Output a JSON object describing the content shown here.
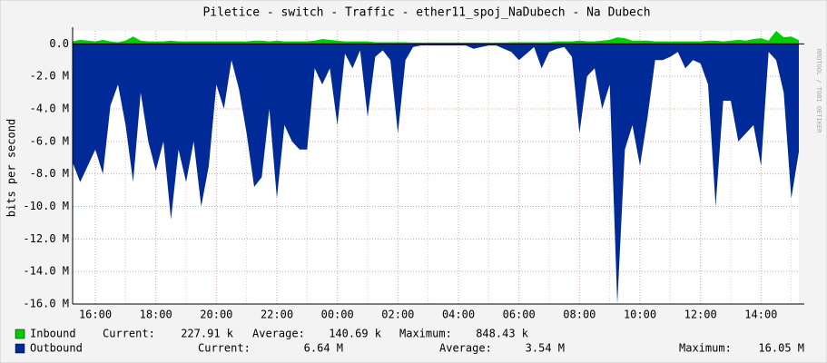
{
  "chart_data": {
    "type": "area",
    "title": "Piletice - switch - Traffic - ether11_spoj_NaDubech - Na Dubech",
    "y_label": "bits per second",
    "watermark": "RRDTOOL / TOBI OETIKER",
    "categories": [
      null,
      null,
      null,
      "16:00",
      null,
      null,
      null,
      null,
      null,
      null,
      null,
      "18:00",
      null,
      null,
      null,
      null,
      null,
      null,
      null,
      "20:00",
      null,
      null,
      null,
      null,
      null,
      null,
      null,
      "22:00",
      null,
      null,
      null,
      null,
      null,
      null,
      null,
      "00:00",
      null,
      null,
      null,
      null,
      null,
      null,
      null,
      "02:00",
      null,
      null,
      null,
      null,
      null,
      null,
      null,
      "04:00",
      null,
      null,
      null,
      null,
      null,
      null,
      null,
      "06:00",
      null,
      null,
      null,
      null,
      null,
      null,
      null,
      "08:00",
      null,
      null,
      null,
      null,
      null,
      null,
      null,
      "10:00",
      null,
      null,
      null,
      null,
      null,
      null,
      null,
      "12:00",
      null,
      null,
      null,
      null,
      null,
      null,
      null,
      "14:00",
      null,
      null,
      null,
      null,
      null
    ],
    "ylim": [
      -16000000,
      800000
    ],
    "yticks": [
      {
        "value": -16000000,
        "label": "-16.0 M"
      },
      {
        "value": -14000000,
        "label": "-14.0 M"
      },
      {
        "value": -12000000,
        "label": "-12.0 M"
      },
      {
        "value": -10000000,
        "label": "-10.0 M"
      },
      {
        "value": -8000000,
        "label": "-8.0 M"
      },
      {
        "value": -6000000,
        "label": "-6.0 M"
      },
      {
        "value": -4000000,
        "label": "-4.0 M"
      },
      {
        "value": -2000000,
        "label": "-2.0 M"
      },
      {
        "value": 0,
        "label": "0.0"
      }
    ],
    "grid": true,
    "series": [
      {
        "name": "Inbound",
        "color": "#00cc00",
        "legend_stats": [
          {
            "label": "Current:",
            "value": "227.91 k"
          },
          {
            "label": "Average:",
            "value": "140.69 k"
          },
          {
            "label": "Maximum:",
            "value": "848.43 k"
          }
        ],
        "values": [
          150000,
          250000,
          200000,
          150000,
          250000,
          150000,
          100000,
          200000,
          450000,
          200000,
          150000,
          150000,
          150000,
          200000,
          150000,
          150000,
          150000,
          150000,
          150000,
          150000,
          150000,
          150000,
          150000,
          150000,
          200000,
          200000,
          150000,
          200000,
          150000,
          150000,
          150000,
          150000,
          200000,
          300000,
          250000,
          200000,
          150000,
          150000,
          150000,
          150000,
          100000,
          100000,
          100000,
          100000,
          100000,
          80000,
          80000,
          80000,
          80000,
          80000,
          80000,
          80000,
          80000,
          80000,
          80000,
          80000,
          80000,
          80000,
          100000,
          100000,
          100000,
          100000,
          100000,
          100000,
          150000,
          150000,
          150000,
          200000,
          150000,
          150000,
          200000,
          250000,
          400000,
          350000,
          200000,
          200000,
          200000,
          150000,
          150000,
          150000,
          150000,
          150000,
          150000,
          150000,
          200000,
          200000,
          150000,
          200000,
          250000,
          200000,
          300000,
          350000,
          200000,
          800000,
          400000,
          450000,
          227910
        ]
      },
      {
        "name": "Outbound",
        "color": "#002a97",
        "legend_stats": [
          {
            "label": "Current:",
            "value": "6.64 M"
          },
          {
            "label": "Average:",
            "value": "3.54 M"
          },
          {
            "label": "Maximum:",
            "value": "16.05 M"
          }
        ],
        "values": [
          -7300000,
          -8500000,
          -7500000,
          -6500000,
          -8000000,
          -3800000,
          -2500000,
          -5000000,
          -8500000,
          -3000000,
          -6000000,
          -7800000,
          -6000000,
          -10800000,
          -6500000,
          -8500000,
          -6000000,
          -10000000,
          -7500000,
          -2500000,
          -4000000,
          -1000000,
          -2800000,
          -5500000,
          -8800000,
          -8200000,
          -4000000,
          -9500000,
          -5000000,
          -6000000,
          -6500000,
          -6500000,
          -1500000,
          -2500000,
          -1500000,
          -5000000,
          -600000,
          -1500000,
          -400000,
          -4500000,
          -800000,
          -400000,
          -1000000,
          -5500000,
          -1000000,
          -200000,
          -100000,
          -100000,
          -100000,
          -100000,
          -100000,
          -100000,
          -100000,
          -300000,
          -200000,
          -100000,
          -100000,
          -300000,
          -500000,
          -1000000,
          -600000,
          -200000,
          -1500000,
          -500000,
          -300000,
          -200000,
          -800000,
          -5500000,
          -2000000,
          -1500000,
          -4000000,
          -2500000,
          -16000000,
          -6500000,
          -5000000,
          -7500000,
          -4500000,
          -1000000,
          -1000000,
          -800000,
          -500000,
          -1500000,
          -1000000,
          -1200000,
          -2500000,
          -10000000,
          -3500000,
          -3500000,
          -6000000,
          -5500000,
          -5000000,
          -7500000,
          -500000,
          -1000000,
          -3000000,
          -9500000,
          -6640000
        ]
      }
    ]
  }
}
